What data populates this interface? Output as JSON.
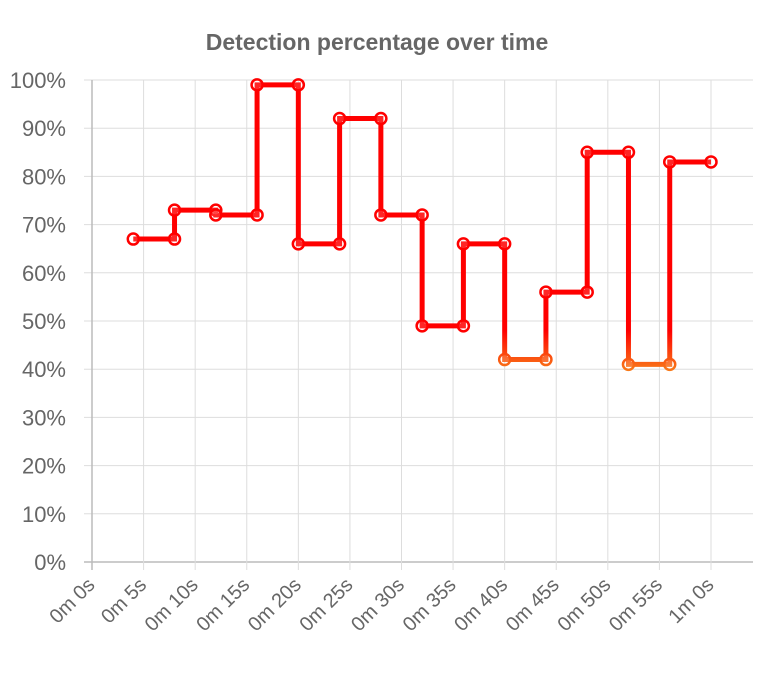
{
  "chart_data": {
    "type": "line",
    "step": true,
    "title": "Detection percentage over time",
    "xlabel": "",
    "ylabel": "",
    "x_unit": "seconds",
    "ylim": [
      0,
      100
    ],
    "xlim": [
      0,
      60
    ],
    "y_ticks": [
      "0%",
      "10%",
      "20%",
      "30%",
      "40%",
      "50%",
      "60%",
      "70%",
      "80%",
      "90%",
      "100%"
    ],
    "x_ticks": [
      "0m 0s",
      "0m 5s",
      "0m 10s",
      "0m 15s",
      "0m 20s",
      "0m 25s",
      "0m 30s",
      "0m 35s",
      "0m 40s",
      "0m 45s",
      "0m 50s",
      "0m 55s",
      "1m 0s"
    ],
    "grid": true,
    "legend": "none",
    "points": [
      {
        "x": 4,
        "y": 67
      },
      {
        "x": 8,
        "y": 67
      },
      {
        "x": 8,
        "y": 73
      },
      {
        "x": 12,
        "y": 73
      },
      {
        "x": 12,
        "y": 72
      },
      {
        "x": 16,
        "y": 72
      },
      {
        "x": 16,
        "y": 99
      },
      {
        "x": 20,
        "y": 99
      },
      {
        "x": 20,
        "y": 66
      },
      {
        "x": 24,
        "y": 66
      },
      {
        "x": 24,
        "y": 92
      },
      {
        "x": 28,
        "y": 92
      },
      {
        "x": 28,
        "y": 72
      },
      {
        "x": 32,
        "y": 72
      },
      {
        "x": 32,
        "y": 49
      },
      {
        "x": 36,
        "y": 49
      },
      {
        "x": 36,
        "y": 66
      },
      {
        "x": 40,
        "y": 66
      },
      {
        "x": 40,
        "y": 42
      },
      {
        "x": 44,
        "y": 42
      },
      {
        "x": 44,
        "y": 56
      },
      {
        "x": 48,
        "y": 56
      },
      {
        "x": 48,
        "y": 85
      },
      {
        "x": 52,
        "y": 85
      },
      {
        "x": 52,
        "y": 41
      },
      {
        "x": 56,
        "y": 41
      },
      {
        "x": 56,
        "y": 83
      },
      {
        "x": 60,
        "y": 83
      }
    ],
    "colors": {
      "high": "#ff0000",
      "low": "#f7931e",
      "text": "#666666",
      "grid": "#dddddd"
    }
  }
}
